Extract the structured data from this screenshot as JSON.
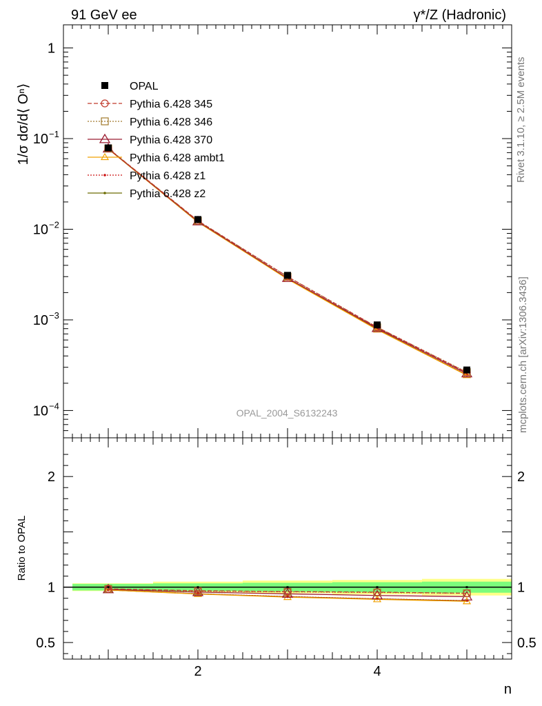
{
  "header": {
    "left": "91 GeV ee",
    "right": "γ*/Z (Hadronic)"
  },
  "side_texts": {
    "rivet": "Rivet 3.1.10, ≥ 2.5M events",
    "mcplots": "mcplots.cern.ch [arXiv:1306.3436]"
  },
  "watermark": "OPAL_2004_S6132243",
  "colors": {
    "opal": "#000000",
    "p345": "#c0392b",
    "p346": "#a0782a",
    "p370": "#9b1b30",
    "ambt1": "#f0a000",
    "z1": "#cc1111",
    "z2": "#6b6b00",
    "band_inner": "#7cfc7c",
    "band_outer": "#ffff88"
  },
  "chart_data": [
    {
      "type": "line",
      "name": "main",
      "ylabel": "1/σ dσ/d⟨ Oⁿ⟩",
      "yscale": "log",
      "ylim": [
        5e-05,
        1.8
      ],
      "xlim": [
        0.5,
        5.5
      ],
      "yticks": [
        {
          "v": 1,
          "label": "1"
        },
        {
          "v": 0.1,
          "label": "10",
          "exp": "−1"
        },
        {
          "v": 0.01,
          "label": "10",
          "exp": "−2"
        },
        {
          "v": 0.001,
          "label": "10",
          "exp": "−3"
        },
        {
          "v": 0.0001,
          "label": "10",
          "exp": "−4"
        }
      ],
      "x": [
        1,
        2,
        3,
        4,
        5
      ],
      "series": [
        {
          "name": "OPAL",
          "key": "opal",
          "marker": "filled-square",
          "values": [
            0.079,
            0.0128,
            0.0031,
            0.00088,
            0.00028
          ]
        },
        {
          "name": "Pythia 6.428 345",
          "key": "p345",
          "marker": "open-circle",
          "dash": "6,3",
          "values": [
            0.078,
            0.0124,
            0.003,
            0.00083,
            0.000263
          ]
        },
        {
          "name": "Pythia 6.428 346",
          "key": "p346",
          "marker": "open-square",
          "dash": "2,2",
          "values": [
            0.078,
            0.0124,
            0.003,
            0.00083,
            0.000265
          ]
        },
        {
          "name": "Pythia 6.428 370",
          "key": "p370",
          "marker": "open-triangle",
          "dash": "",
          "values": [
            0.0775,
            0.0122,
            0.00289,
            0.00081,
            0.000256
          ]
        },
        {
          "name": "Pythia 6.428 ambt1",
          "key": "ambt1",
          "marker": "small-triangle",
          "dash": "",
          "values": [
            0.077,
            0.012,
            0.00282,
            0.00078,
            0.000245
          ]
        },
        {
          "name": "Pythia 6.428 z1",
          "key": "z1",
          "marker": "dot",
          "dash": "2,2",
          "values": [
            0.077,
            0.012,
            0.00284,
            0.00079,
            0.000248
          ]
        },
        {
          "name": "Pythia 6.428 z2",
          "key": "z2",
          "marker": "dot",
          "dash": "",
          "values": [
            0.077,
            0.012,
            0.00283,
            0.00079,
            0.000247
          ]
        }
      ]
    },
    {
      "type": "line",
      "name": "ratio",
      "ylabel": "Ratio to OPAL",
      "xlabel": "n",
      "ylim": [
        0.35,
        2.35
      ],
      "xlim": [
        0.5,
        5.5
      ],
      "yticks": [
        {
          "v": 0.5,
          "label": "0.5"
        },
        {
          "v": 1,
          "label": "1"
        },
        {
          "v": 2,
          "label": "2"
        }
      ],
      "xticks": [
        {
          "v": 2,
          "label": "2"
        },
        {
          "v": 4,
          "label": "4"
        }
      ],
      "band_inner": [
        {
          "x0": 0.6,
          "x1": 1.5,
          "lo": 0.97,
          "hi": 1.03
        },
        {
          "x0": 1.5,
          "x1": 2.5,
          "lo": 0.965,
          "hi": 1.035
        },
        {
          "x0": 2.5,
          "x1": 3.5,
          "lo": 0.96,
          "hi": 1.04
        },
        {
          "x0": 3.5,
          "x1": 4.5,
          "lo": 0.955,
          "hi": 1.045
        },
        {
          "x0": 4.5,
          "x1": 5.5,
          "lo": 0.95,
          "hi": 1.05
        }
      ],
      "band_outer": [
        {
          "x0": 0.6,
          "x1": 1.5,
          "lo": 0.965,
          "hi": 1.035
        },
        {
          "x0": 1.5,
          "x1": 2.5,
          "lo": 0.955,
          "hi": 1.05
        },
        {
          "x0": 2.5,
          "x1": 3.5,
          "lo": 0.945,
          "hi": 1.06
        },
        {
          "x0": 3.5,
          "x1": 4.5,
          "lo": 0.935,
          "hi": 1.065
        },
        {
          "x0": 4.5,
          "x1": 5.5,
          "lo": 0.925,
          "hi": 1.075
        }
      ],
      "x": [
        1,
        2,
        3,
        4,
        5
      ],
      "series": [
        {
          "name": "Pythia 6.428 345",
          "key": "p345",
          "marker": "open-circle",
          "dash": "6,3",
          "values": [
            0.985,
            0.968,
            0.96,
            0.955,
            0.945
          ]
        },
        {
          "name": "Pythia 6.428 346",
          "key": "p346",
          "marker": "open-square",
          "dash": "2,2",
          "values": [
            0.985,
            0.965,
            0.958,
            0.952,
            0.945
          ]
        },
        {
          "name": "Pythia 6.428 370",
          "key": "p370",
          "marker": "open-triangle",
          "dash": "",
          "values": [
            0.98,
            0.955,
            0.94,
            0.925,
            0.915
          ]
        },
        {
          "name": "Pythia 6.428 ambt1",
          "key": "ambt1",
          "marker": "small-triangle",
          "dash": "",
          "values": [
            0.975,
            0.938,
            0.91,
            0.89,
            0.872
          ]
        },
        {
          "name": "Pythia 6.428 z1",
          "key": "z1",
          "marker": "dot",
          "dash": "2,2",
          "values": [
            0.975,
            0.94,
            0.915,
            0.895,
            0.878
          ]
        },
        {
          "name": "Pythia 6.428 z2",
          "key": "z2",
          "marker": "dot",
          "dash": "",
          "values": [
            0.975,
            0.94,
            0.914,
            0.894,
            0.877
          ]
        }
      ]
    }
  ]
}
